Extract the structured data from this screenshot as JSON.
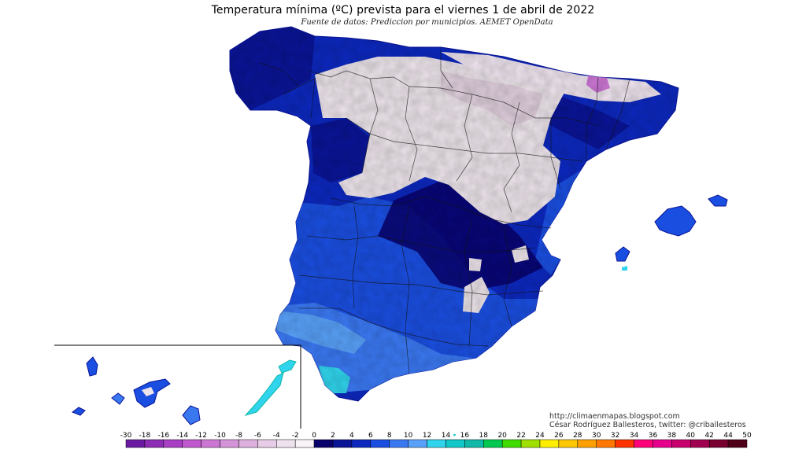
{
  "title": "Temperatura mínima (ºC) prevista para el viernes 1 de abril de 2022",
  "subtitle": "Fuente de datos: Prediccion por municipios. AEMET OpenData",
  "credits": {
    "url": "http://climaenmapas.blogspot.com",
    "author": "César Rodríguez Ballesteros, twitter: @criballesteros"
  },
  "regions": {
    "peninsula": "peninsula",
    "balearic": "islas baleares",
    "canary": "islas canarias"
  },
  "colorbar": {
    "unit": "ºC",
    "labels": [
      "-30",
      "-18",
      "-16",
      "-14",
      "-12",
      "-10",
      "-8",
      "-6",
      "-4",
      "-2",
      "0",
      "2",
      "4",
      "6",
      "8",
      "10",
      "12",
      "14",
      "16",
      "18",
      "20",
      "22",
      "24",
      "26",
      "28",
      "30",
      "32",
      "34",
      "36",
      "38",
      "40",
      "42",
      "44",
      "50"
    ],
    "colors": [
      "#6a1aa0",
      "#8c2bb4",
      "#a83ec4",
      "#c058ce",
      "#cc76d4",
      "#d594d9",
      "#ddb0dd",
      "#e6cce6",
      "#efe2ef",
      "#f8f4f8",
      "#08006b",
      "#0a1496",
      "#0c28be",
      "#1a4ee0",
      "#3a78f2",
      "#58a0f8",
      "#30d4ec",
      "#10c8c8",
      "#10b8a8",
      "#00c850",
      "#40dc00",
      "#a0e000",
      "#ffee00",
      "#ffc800",
      "#ffa000",
      "#ff7800",
      "#ff3200",
      "#ff0078",
      "#e6008c",
      "#c8006e",
      "#a00050",
      "#780030",
      "#500018"
    ],
    "tick_marks": [
      "14"
    ]
  }
}
